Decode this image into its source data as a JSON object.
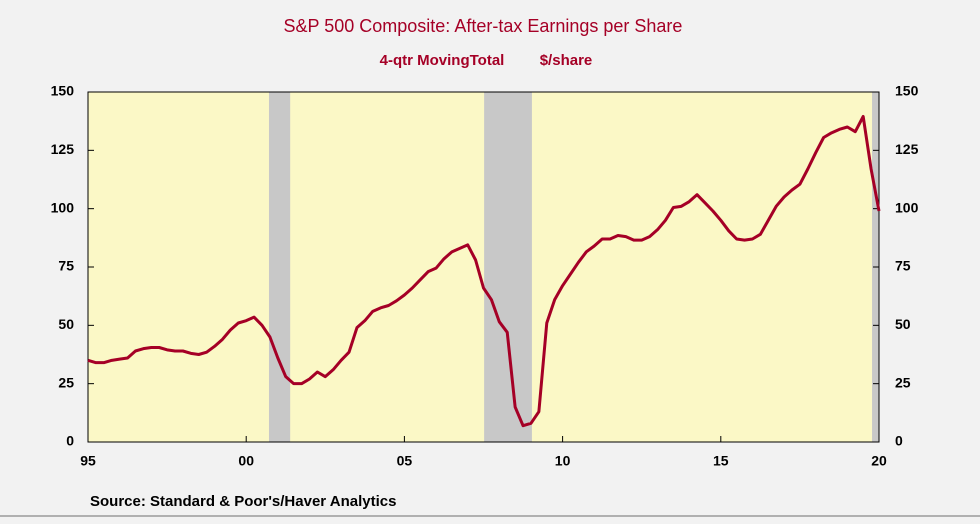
{
  "chart_data": {
    "type": "line",
    "title": "S&P 500 Composite: After-tax Earnings per Share",
    "subtitle": "4-qtr MovingTotal",
    "unit_label": "$/share",
    "source": "Source:  Standard & Poor's/Haver Analytics",
    "x": [
      1995,
      1995.25,
      1995.5,
      1995.75,
      1996,
      1996.25,
      1996.5,
      1996.75,
      1997,
      1997.25,
      1997.5,
      1997.75,
      1998,
      1998.25,
      1998.5,
      1998.75,
      1999,
      1999.25,
      1999.5,
      1999.75,
      2000,
      2000.25,
      2000.5,
      2000.75,
      2001,
      2001.25,
      2001.5,
      2001.75,
      2002,
      2002.25,
      2002.5,
      2002.75,
      2003,
      2003.25,
      2003.5,
      2003.75,
      2004,
      2004.25,
      2004.5,
      2004.75,
      2005,
      2005.25,
      2005.5,
      2005.75,
      2006,
      2006.25,
      2006.5,
      2006.75,
      2007,
      2007.25,
      2007.5,
      2007.75,
      2008,
      2008.25,
      2008.5,
      2008.75,
      2009,
      2009.25,
      2009.5,
      2009.75,
      2010,
      2010.25,
      2010.5,
      2010.75,
      2011,
      2011.25,
      2011.5,
      2011.75,
      2012,
      2012.25,
      2012.5,
      2012.75,
      2013,
      2013.25,
      2013.5,
      2013.75,
      2014,
      2014.25,
      2014.5,
      2014.75,
      2015,
      2015.25,
      2015.5,
      2015.75,
      2016,
      2016.25,
      2016.5,
      2016.75,
      2017,
      2017.25,
      2017.5,
      2017.75,
      2018,
      2018.25,
      2018.5,
      2018.75,
      2019,
      2019.25,
      2019.5,
      2019.75,
      2020
    ],
    "series": [
      {
        "name": "After-tax Earnings per Share",
        "color": "#a50026",
        "values": [
          35,
          34,
          34,
          35,
          35.5,
          36,
          39,
          40,
          40.5,
          40.5,
          39.5,
          39,
          39,
          38,
          37.5,
          38.5,
          41,
          44,
          48,
          51,
          52,
          53.5,
          50,
          45,
          36,
          28,
          25,
          25,
          27,
          30,
          28,
          31,
          35,
          38.5,
          49,
          52,
          56,
          57.5,
          58.5,
          60.5,
          63,
          66,
          69.5,
          73,
          74.5,
          78.5,
          81.5,
          83,
          84.5,
          78,
          66,
          61,
          51.5,
          47,
          15,
          7,
          8,
          13,
          51,
          61,
          67,
          72,
          77,
          81.5,
          84,
          87,
          87,
          88.5,
          88,
          86.5,
          86.5,
          88,
          91,
          95,
          100.5,
          101,
          103,
          106,
          102.5,
          99,
          95,
          90.5,
          87,
          86.5,
          87,
          89,
          95,
          101,
          105,
          108,
          110.5,
          117,
          124,
          130.5,
          132.5,
          134,
          135,
          133,
          139.5,
          117,
          99
        ]
      }
    ],
    "shaded_periods": [
      [
        2000.72,
        2001.39
      ],
      [
        2007.52,
        2009.03
      ],
      [
        2019.78,
        2020
      ]
    ],
    "xlim": [
      1995,
      2020
    ],
    "xticks": [
      {
        "value": 1995,
        "label": "95"
      },
      {
        "value": 2000,
        "label": "00"
      },
      {
        "value": 2005,
        "label": "05"
      },
      {
        "value": 2010,
        "label": "10"
      },
      {
        "value": 2015,
        "label": "15"
      },
      {
        "value": 2020,
        "label": "20"
      }
    ],
    "ylim": [
      0,
      150
    ],
    "yticks": [
      0,
      25,
      50,
      75,
      100,
      125,
      150
    ],
    "y2lim": [
      0,
      150
    ],
    "y2ticks": [
      0,
      25,
      50,
      75,
      100,
      125,
      150
    ]
  }
}
